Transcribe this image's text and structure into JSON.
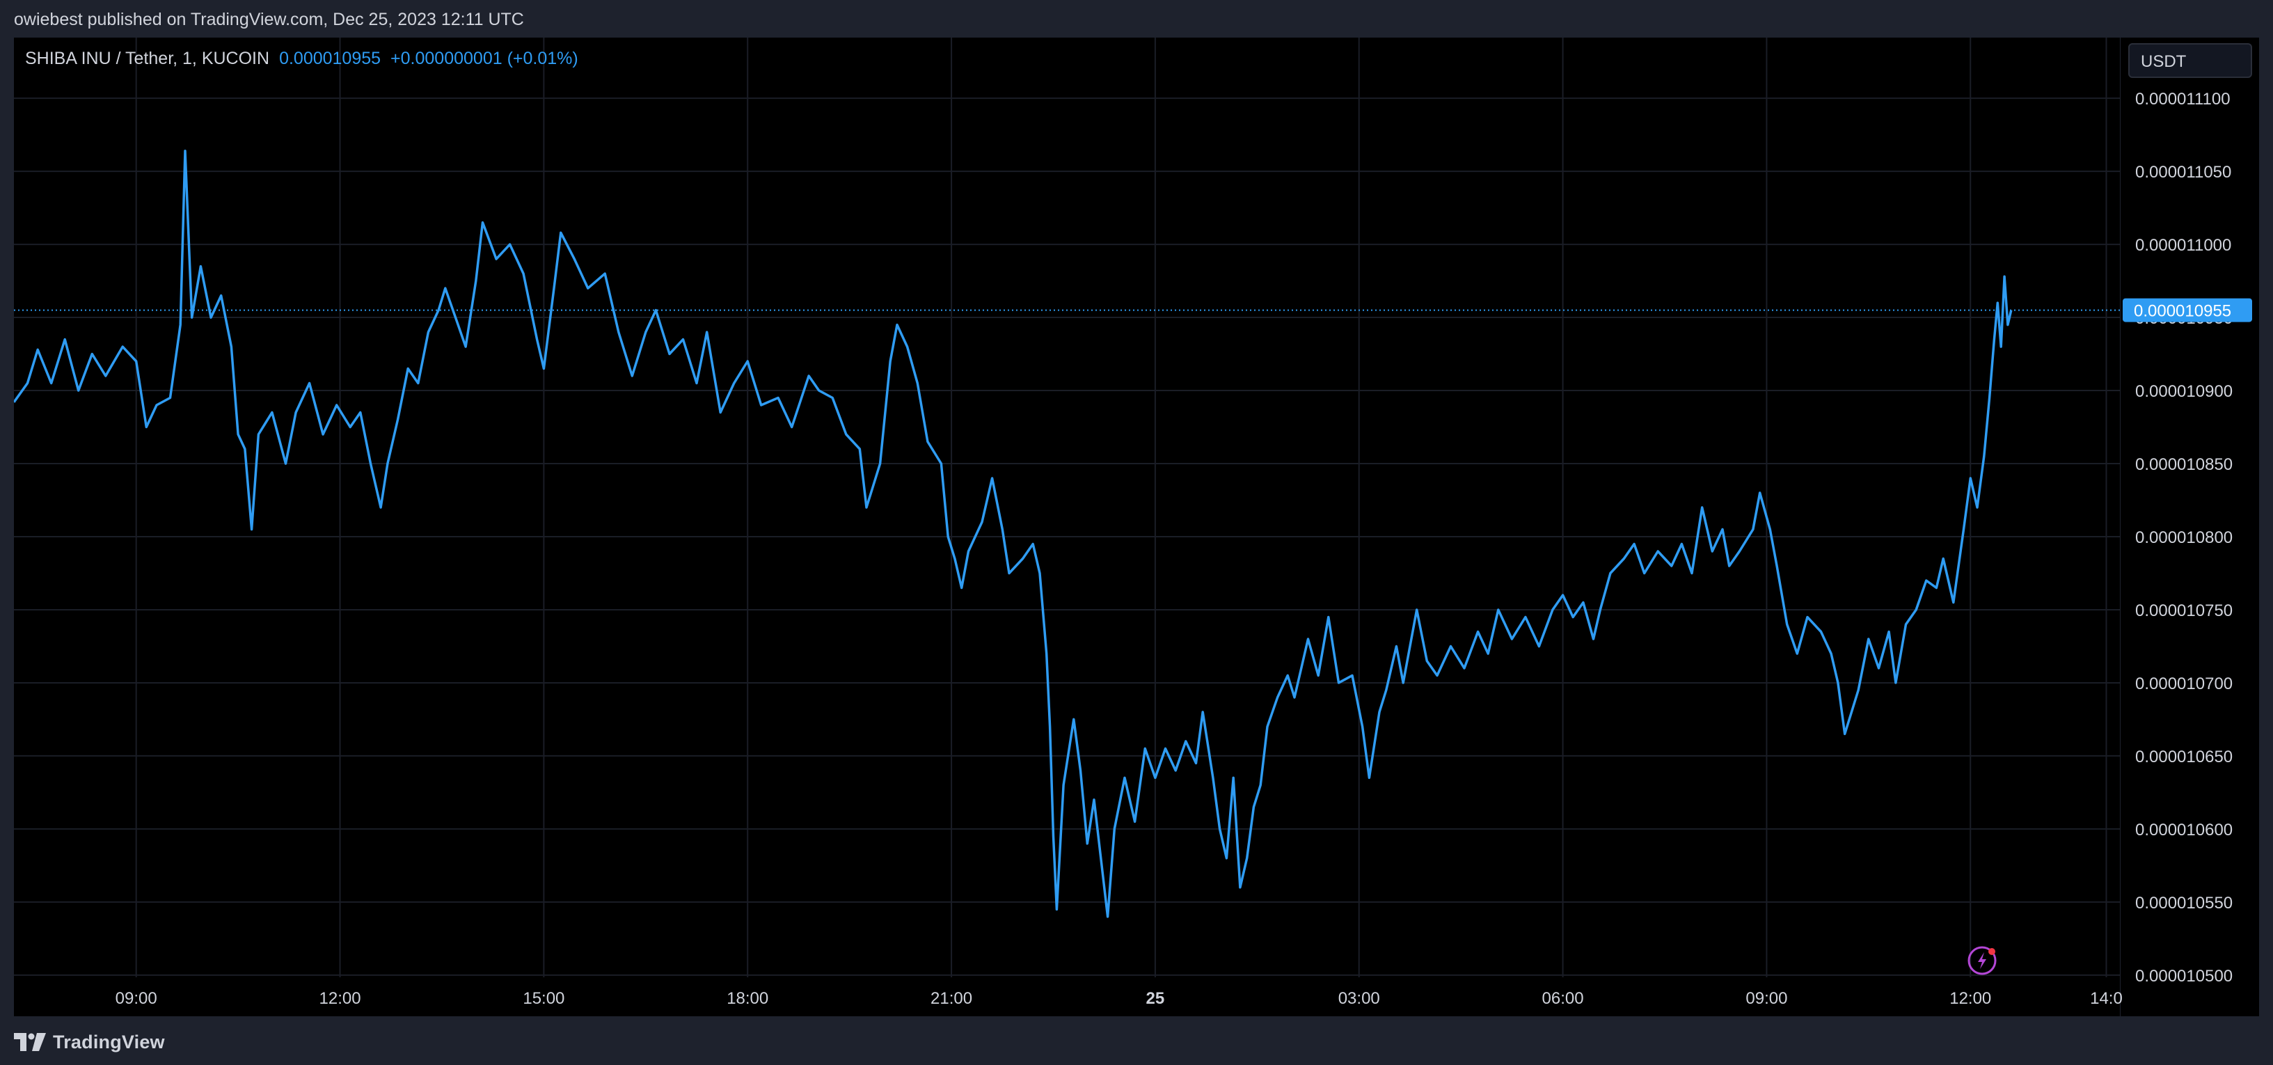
{
  "header": {
    "published_text": "owiebest published on TradingView.com, Dec 25, 2023 12:11 UTC"
  },
  "legend": {
    "symbol": "SHIBA INU / Tether, 1, KUCOIN",
    "price": "0.000010955",
    "change": "+0.000000001 (+0.01%)"
  },
  "currency_button": {
    "label": "USDT"
  },
  "last_price_label": "0.000010955",
  "footer": {
    "brand": "TradingView"
  },
  "colors": {
    "line": "#2f9cf3",
    "background": "#000000",
    "frame": "#1e222d",
    "grid": "#1a1d26",
    "axis_text": "#d1d4dc",
    "price_tag": "#2f9cf3",
    "flash_icon": "#b447d6",
    "flash_dot": "#f23645"
  },
  "icons": [
    "tradingview-logo-icon",
    "lightning-icon"
  ],
  "chart_data": {
    "type": "line",
    "title": "SHIBA INU / Tether, 1, KUCOIN",
    "xlabel": "",
    "ylabel": "",
    "y_ticks": [
      "0.000011100",
      "0.000011050",
      "0.000011000",
      "0.000010950",
      "0.000010900",
      "0.000010850",
      "0.000010800",
      "0.000010750",
      "0.000010700",
      "0.000010650",
      "0.000010600",
      "0.000010550",
      "0.000010500"
    ],
    "y_tick_values": [
      1.11e-05,
      1.105e-05,
      1.1e-05,
      1.095e-05,
      1.09e-05,
      1.085e-05,
      1.08e-05,
      1.075e-05,
      1.07e-05,
      1.065e-05,
      1.06e-05,
      1.055e-05,
      1.05e-05
    ],
    "x_ticks": [
      {
        "label": "09:00",
        "hours": 9,
        "bold": false
      },
      {
        "label": "12:00",
        "hours": 12,
        "bold": false
      },
      {
        "label": "15:00",
        "hours": 15,
        "bold": false
      },
      {
        "label": "18:00",
        "hours": 18,
        "bold": false
      },
      {
        "label": "21:00",
        "hours": 21,
        "bold": false
      },
      {
        "label": "25",
        "hours": 24,
        "bold": true
      },
      {
        "label": "03:00",
        "hours": 27,
        "bold": false
      },
      {
        "label": "06:00",
        "hours": 30,
        "bold": false
      },
      {
        "label": "09:00",
        "hours": 33,
        "bold": false
      },
      {
        "label": "12:00",
        "hours": 36,
        "bold": false
      },
      {
        "label": "14:0",
        "hours": 38,
        "bold": false
      }
    ],
    "x_range_hours": [
      7.2,
      38.2
    ],
    "ylim": [
      1.04985e-05,
      1.11415e-05
    ],
    "last_price": 1.0955e-05,
    "grid": true,
    "series": [
      {
        "points": [
          [
            7.2,
            1.0892e-05
          ],
          [
            7.4,
            1.0905e-05
          ],
          [
            7.55,
            1.0928e-05
          ],
          [
            7.75,
            1.0905e-05
          ],
          [
            7.95,
            1.0935e-05
          ],
          [
            8.15,
            1.09e-05
          ],
          [
            8.35,
            1.0925e-05
          ],
          [
            8.55,
            1.091e-05
          ],
          [
            8.8,
            1.093e-05
          ],
          [
            9.0,
            1.092e-05
          ],
          [
            9.15,
            1.0875e-05
          ],
          [
            9.3,
            1.089e-05
          ],
          [
            9.5,
            1.0895e-05
          ],
          [
            9.65,
            1.0945e-05
          ],
          [
            9.72,
            1.1064e-05
          ],
          [
            9.82,
            1.095e-05
          ],
          [
            9.95,
            1.0985e-05
          ],
          [
            10.1,
            1.095e-05
          ],
          [
            10.25,
            1.0965e-05
          ],
          [
            10.4,
            1.093e-05
          ],
          [
            10.5,
            1.087e-05
          ],
          [
            10.6,
            1.086e-05
          ],
          [
            10.7,
            1.0805e-05
          ],
          [
            10.8,
            1.087e-05
          ],
          [
            11.0,
            1.0885e-05
          ],
          [
            11.2,
            1.085e-05
          ],
          [
            11.35,
            1.0885e-05
          ],
          [
            11.55,
            1.0905e-05
          ],
          [
            11.75,
            1.087e-05
          ],
          [
            11.95,
            1.089e-05
          ],
          [
            12.15,
            1.0875e-05
          ],
          [
            12.3,
            1.0885e-05
          ],
          [
            12.45,
            1.085e-05
          ],
          [
            12.6,
            1.082e-05
          ],
          [
            12.7,
            1.085e-05
          ],
          [
            12.85,
            1.088e-05
          ],
          [
            13.0,
            1.0915e-05
          ],
          [
            13.15,
            1.0905e-05
          ],
          [
            13.3,
            1.094e-05
          ],
          [
            13.45,
            1.0955e-05
          ],
          [
            13.55,
            1.097e-05
          ],
          [
            13.7,
            1.095e-05
          ],
          [
            13.85,
            1.093e-05
          ],
          [
            14.0,
            1.0975e-05
          ],
          [
            14.1,
            1.1015e-05
          ],
          [
            14.3,
            1.099e-05
          ],
          [
            14.5,
            1.1e-05
          ],
          [
            14.7,
            1.098e-05
          ],
          [
            14.9,
            1.0935e-05
          ],
          [
            15.0,
            1.0915e-05
          ],
          [
            15.15,
            1.097e-05
          ],
          [
            15.25,
            1.1008e-05
          ],
          [
            15.45,
            1.099e-05
          ],
          [
            15.65,
            1.097e-05
          ],
          [
            15.9,
            1.098e-05
          ],
          [
            16.1,
            1.094e-05
          ],
          [
            16.3,
            1.091e-05
          ],
          [
            16.5,
            1.094e-05
          ],
          [
            16.65,
            1.0955e-05
          ],
          [
            16.85,
            1.0925e-05
          ],
          [
            17.05,
            1.0935e-05
          ],
          [
            17.25,
            1.0905e-05
          ],
          [
            17.4,
            1.094e-05
          ],
          [
            17.6,
            1.0885e-05
          ],
          [
            17.8,
            1.0905e-05
          ],
          [
            18.0,
            1.092e-05
          ],
          [
            18.2,
            1.089e-05
          ],
          [
            18.45,
            1.0895e-05
          ],
          [
            18.65,
            1.0875e-05
          ],
          [
            18.9,
            1.091e-05
          ],
          [
            19.05,
            1.09e-05
          ],
          [
            19.25,
            1.0895e-05
          ],
          [
            19.45,
            1.087e-05
          ],
          [
            19.65,
            1.086e-05
          ],
          [
            19.75,
            1.082e-05
          ],
          [
            19.95,
            1.085e-05
          ],
          [
            20.1,
            1.092e-05
          ],
          [
            20.2,
            1.0945e-05
          ],
          [
            20.35,
            1.093e-05
          ],
          [
            20.5,
            1.0905e-05
          ],
          [
            20.65,
            1.0865e-05
          ],
          [
            20.85,
            1.085e-05
          ],
          [
            20.95,
            1.08e-05
          ],
          [
            21.05,
            1.0785e-05
          ],
          [
            21.15,
            1.0765e-05
          ],
          [
            21.25,
            1.079e-05
          ],
          [
            21.45,
            1.081e-05
          ],
          [
            21.6,
            1.084e-05
          ],
          [
            21.75,
            1.0805e-05
          ],
          [
            21.85,
            1.0775e-05
          ],
          [
            22.05,
            1.0785e-05
          ],
          [
            22.2,
            1.0795e-05
          ],
          [
            22.3,
            1.0775e-05
          ],
          [
            22.4,
            1.072e-05
          ],
          [
            22.45,
            1.067e-05
          ],
          [
            22.5,
            1.0595e-05
          ],
          [
            22.55,
            1.0545e-05
          ],
          [
            22.65,
            1.063e-05
          ],
          [
            22.8,
            1.0675e-05
          ],
          [
            22.9,
            1.064e-05
          ],
          [
            23.0,
            1.059e-05
          ],
          [
            23.1,
            1.062e-05
          ],
          [
            23.25,
            1.056e-05
          ],
          [
            23.3,
            1.054e-05
          ],
          [
            23.4,
            1.06e-05
          ],
          [
            23.55,
            1.0635e-05
          ],
          [
            23.7,
            1.0605e-05
          ],
          [
            23.85,
            1.0655e-05
          ],
          [
            24.0,
            1.0635e-05
          ],
          [
            24.15,
            1.0655e-05
          ],
          [
            24.3,
            1.064e-05
          ],
          [
            24.45,
            1.066e-05
          ],
          [
            24.6,
            1.0645e-05
          ],
          [
            24.7,
            1.068e-05
          ],
          [
            24.85,
            1.0635e-05
          ],
          [
            24.95,
            1.06e-05
          ],
          [
            25.05,
            1.058e-05
          ],
          [
            25.15,
            1.0635e-05
          ],
          [
            25.25,
            1.056e-05
          ],
          [
            25.35,
            1.058e-05
          ],
          [
            25.45,
            1.0615e-05
          ],
          [
            25.55,
            1.063e-05
          ],
          [
            25.65,
            1.067e-05
          ],
          [
            25.8,
            1.069e-05
          ],
          [
            25.95,
            1.0705e-05
          ],
          [
            26.05,
            1.069e-05
          ],
          [
            26.15,
            1.071e-05
          ],
          [
            26.25,
            1.073e-05
          ],
          [
            26.4,
            1.0705e-05
          ],
          [
            26.55,
            1.0745e-05
          ],
          [
            26.7,
            1.07e-05
          ],
          [
            26.9,
            1.0705e-05
          ],
          [
            27.05,
            1.067e-05
          ],
          [
            27.15,
            1.0635e-05
          ],
          [
            27.3,
            1.068e-05
          ],
          [
            27.4,
            1.0695e-05
          ],
          [
            27.55,
            1.0725e-05
          ],
          [
            27.65,
            1.07e-05
          ],
          [
            27.85,
            1.075e-05
          ],
          [
            28.0,
            1.0715e-05
          ],
          [
            28.15,
            1.0705e-05
          ],
          [
            28.35,
            1.0725e-05
          ],
          [
            28.55,
            1.071e-05
          ],
          [
            28.75,
            1.0735e-05
          ],
          [
            28.9,
            1.072e-05
          ],
          [
            29.05,
            1.075e-05
          ],
          [
            29.25,
            1.073e-05
          ],
          [
            29.45,
            1.0745e-05
          ],
          [
            29.65,
            1.0725e-05
          ],
          [
            29.85,
            1.075e-05
          ],
          [
            30.0,
            1.076e-05
          ],
          [
            30.15,
            1.0745e-05
          ],
          [
            30.3,
            1.0755e-05
          ],
          [
            30.45,
            1.073e-05
          ],
          [
            30.55,
            1.075e-05
          ],
          [
            30.7,
            1.0775e-05
          ],
          [
            30.9,
            1.0785e-05
          ],
          [
            31.05,
            1.0795e-05
          ],
          [
            31.2,
            1.0775e-05
          ],
          [
            31.4,
            1.079e-05
          ],
          [
            31.6,
            1.078e-05
          ],
          [
            31.75,
            1.0795e-05
          ],
          [
            31.9,
            1.0775e-05
          ],
          [
            32.05,
            1.082e-05
          ],
          [
            32.2,
            1.079e-05
          ],
          [
            32.35,
            1.0805e-05
          ],
          [
            32.45,
            1.078e-05
          ],
          [
            32.6,
            1.079e-05
          ],
          [
            32.8,
            1.0805e-05
          ],
          [
            32.9,
            1.083e-05
          ],
          [
            33.05,
            1.0805e-05
          ],
          [
            33.15,
            1.078e-05
          ],
          [
            33.3,
            1.074e-05
          ],
          [
            33.45,
            1.072e-05
          ],
          [
            33.6,
            1.0745e-05
          ],
          [
            33.8,
            1.0735e-05
          ],
          [
            33.95,
            1.072e-05
          ],
          [
            34.05,
            1.07e-05
          ],
          [
            34.15,
            1.0665e-05
          ],
          [
            34.35,
            1.0695e-05
          ],
          [
            34.5,
            1.073e-05
          ],
          [
            34.65,
            1.071e-05
          ],
          [
            34.8,
            1.0735e-05
          ],
          [
            34.9,
            1.07e-05
          ],
          [
            35.05,
            1.074e-05
          ],
          [
            35.2,
            1.075e-05
          ],
          [
            35.35,
            1.077e-05
          ],
          [
            35.5,
            1.0765e-05
          ],
          [
            35.6,
            1.0785e-05
          ],
          [
            35.75,
            1.0755e-05
          ],
          [
            35.9,
            1.0805e-05
          ],
          [
            36.0,
            1.084e-05
          ],
          [
            36.1,
            1.082e-05
          ],
          [
            36.2,
            1.0855e-05
          ],
          [
            36.28,
            1.0895e-05
          ],
          [
            36.35,
            1.0935e-05
          ],
          [
            36.4,
            1.096e-05
          ],
          [
            36.45,
            1.093e-05
          ],
          [
            36.5,
            1.0978e-05
          ],
          [
            36.55,
            1.0945e-05
          ],
          [
            36.6,
            1.0955e-05
          ]
        ]
      }
    ]
  }
}
